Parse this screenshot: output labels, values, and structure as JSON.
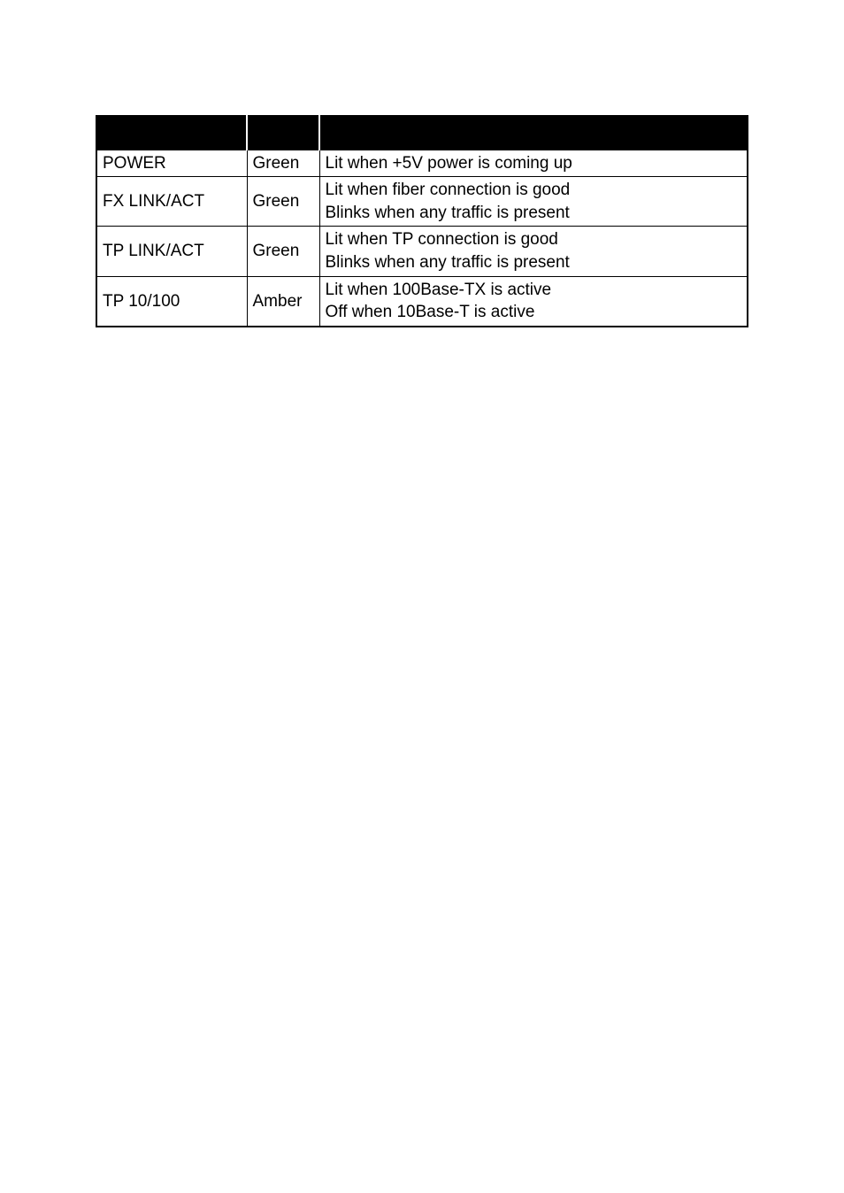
{
  "table": {
    "header_bg": "#000000",
    "header_fg": "#ffffff",
    "border_color": "#000000",
    "background_color": "#ffffff",
    "font_family": "Verdana",
    "cell_fontsize": 19,
    "columns": [
      {
        "key": "led",
        "label": "",
        "width": 170
      },
      {
        "key": "color",
        "label": "",
        "width": 82
      },
      {
        "key": "function",
        "label": "",
        "width": "auto"
      }
    ],
    "rows": [
      {
        "led": "POWER",
        "color": "Green",
        "function": "Lit when +5V power is coming up"
      },
      {
        "led": "FX LINK/ACT",
        "color": "Green",
        "function": "Lit when fiber connection is good\nBlinks when any traffic is present"
      },
      {
        "led": "TP LINK/ACT",
        "color": "Green",
        "function": "Lit when TP connection is good\nBlinks when any traffic is present"
      },
      {
        "led": "TP 10/100",
        "color": "Amber",
        "function": "Lit when 100Base-TX is active\nOff when 10Base-T is active"
      }
    ]
  }
}
